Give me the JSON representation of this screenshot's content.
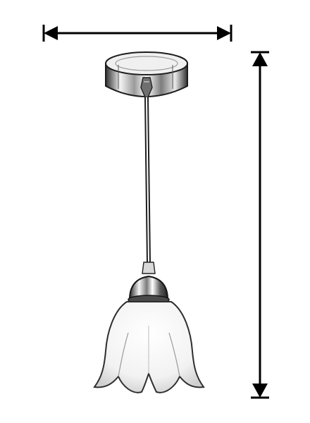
{
  "figure": {
    "subject": "pendant-lamp-sketch",
    "colors": {
      "background": "#ffffff",
      "ink": "#000000",
      "metal_dark": "#3a3a3a",
      "metal_mid": "#8a8a8a",
      "metal_light": "#e0e0e0",
      "glass_shade": "#f4f4f4",
      "glass_edge": "#5a5a5a"
    },
    "icons": {
      "width_arrow": "double-headed-horizontal-arrow",
      "height_arrow": "double-headed-vertical-arrow"
    }
  }
}
